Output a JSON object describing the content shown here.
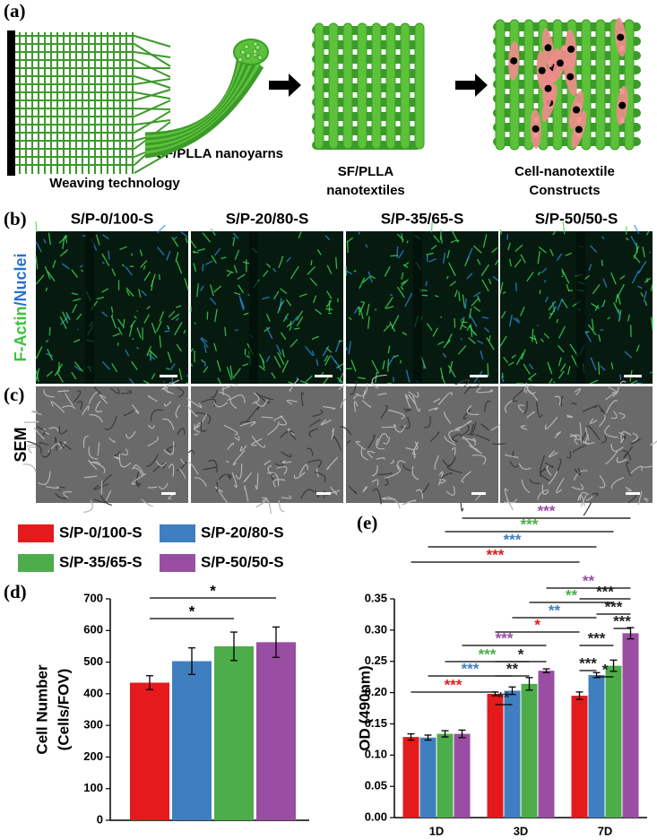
{
  "figure": {
    "panel_labels": [
      "(a)",
      "(b)",
      "(c)",
      "(d)",
      "(e)"
    ],
    "schematic": {
      "nanoyarns": "SF/PLLA nanoyarns",
      "weaving": "Weaving technology",
      "nanotextiles": [
        "SF/PLLA",
        "nanotextiles"
      ],
      "constructs": [
        "Cell-nanotextile",
        "Constructs"
      ]
    },
    "columns": [
      "S/P-0/100-S",
      "S/P-20/80-S",
      "S/P-35/65-S",
      "S/P-50/50-S"
    ],
    "stain": [
      "F-Actin",
      "/Nuclei"
    ],
    "sem": "SEM"
  },
  "chart_data": [
    {
      "type": "bar",
      "ylabel": [
        "Cell Number",
        "(Cells/FOV)"
      ],
      "categories": [
        null,
        null,
        null,
        null
      ],
      "values": [
        435,
        503,
        550,
        563
      ],
      "errors": [
        22,
        42,
        45,
        48
      ],
      "colors": [
        "#e41a1c",
        "#3f7fbf",
        "#4dad4a",
        "#9a4ea3"
      ],
      "ylim": [
        0,
        700
      ],
      "yticks": [
        0,
        100,
        200,
        300,
        400,
        500,
        600,
        700
      ],
      "significance": [
        {
          "from": 0,
          "to": 2,
          "label": "*"
        },
        {
          "from": 0,
          "to": 3,
          "label": "*"
        }
      ]
    },
    {
      "type": "bar",
      "ylabel": "OD (490nm)",
      "categories": [
        "1D",
        "3D",
        "7D"
      ],
      "series": [
        {
          "name": "S/P-0/100-S",
          "color": "#e41a1c",
          "values": [
            0.129,
            0.198,
            0.195
          ],
          "errors": [
            0.005,
            0.003,
            0.006
          ]
        },
        {
          "name": "S/P-20/80-S",
          "color": "#3f7fbf",
          "values": [
            0.128,
            0.203,
            0.228
          ],
          "errors": [
            0.004,
            0.006,
            0.004
          ]
        },
        {
          "name": "S/P-35/65-S",
          "color": "#4dad4a",
          "values": [
            0.134,
            0.214,
            0.243
          ],
          "errors": [
            0.005,
            0.01,
            0.009
          ]
        },
        {
          "name": "S/P-50/50-S",
          "color": "#9a4ea3",
          "values": [
            0.134,
            0.235,
            0.295
          ],
          "errors": [
            0.006,
            0.003,
            0.009
          ]
        }
      ],
      "ylim": [
        0,
        0.35
      ],
      "yticks": [
        {
          "value": 0,
          "label": "0.00"
        },
        {
          "value": 0.05,
          "label": "0.05"
        },
        {
          "value": 0.1,
          "label": "0.10"
        },
        {
          "value": 0.15,
          "label": "0.15"
        },
        {
          "value": 0.2,
          "label": "0.20"
        },
        {
          "value": 0.25,
          "label": "0.25"
        },
        {
          "value": 0.3,
          "label": "0.30"
        },
        {
          "value": 0.35,
          "label": "0.35"
        }
      ],
      "significance": [
        {
          "from": [
            0,
            3
          ],
          "to": [
            2,
            3
          ],
          "label": "***",
          "color": "#9a4ea3"
        },
        {
          "from": [
            0,
            2
          ],
          "to": [
            2,
            2
          ],
          "label": "***",
          "color": "#4dad4a"
        },
        {
          "from": [
            0,
            1
          ],
          "to": [
            2,
            1
          ],
          "label": "***",
          "color": "#3f7fbf"
        },
        {
          "from": [
            0,
            0
          ],
          "to": [
            2,
            0
          ],
          "label": "***",
          "color": "#e41a1c"
        },
        {
          "from": [
            1,
            3
          ],
          "to": [
            2,
            3
          ],
          "label": "**",
          "color": "#9a4ea3"
        },
        {
          "from": [
            1,
            2
          ],
          "to": [
            2,
            2
          ],
          "label": "**",
          "color": "#4dad4a"
        },
        {
          "from": [
            1,
            1
          ],
          "to": [
            2,
            1
          ],
          "label": "**",
          "color": "#3f7fbf"
        },
        {
          "from": [
            1,
            0
          ],
          "to": [
            2,
            0
          ],
          "label": "*",
          "color": "#e41a1c"
        },
        {
          "from": [
            0,
            3
          ],
          "to": [
            1,
            3
          ],
          "label": "***",
          "color": "#9a4ea3"
        },
        {
          "from": [
            0,
            2
          ],
          "to": [
            1,
            2
          ],
          "label": "***",
          "color": "#4dad4a"
        },
        {
          "from": [
            0,
            1
          ],
          "to": [
            1,
            1
          ],
          "label": "***",
          "color": "#3f7fbf"
        },
        {
          "from": [
            0,
            0
          ],
          "to": [
            1,
            0
          ],
          "label": "***",
          "color": "#e41a1c"
        },
        {
          "from": [
            1,
            0
          ],
          "to": [
            1,
            3
          ],
          "label": "*",
          "color": "#222222"
        },
        {
          "from": [
            1,
            0
          ],
          "to": [
            1,
            2
          ],
          "label": "**",
          "color": "#222222"
        },
        {
          "from": [
            1,
            0
          ],
          "to": [
            1,
            1
          ],
          "label": "**",
          "color": "#222222"
        },
        {
          "from": [
            2,
            0
          ],
          "to": [
            2,
            3
          ],
          "label": "***",
          "color": "#222222"
        },
        {
          "from": [
            2,
            1
          ],
          "to": [
            2,
            3
          ],
          "label": "***",
          "color": "#222222"
        },
        {
          "from": [
            2,
            2
          ],
          "to": [
            2,
            3
          ],
          "label": "***",
          "color": "#222222"
        },
        {
          "from": [
            2,
            0
          ],
          "to": [
            2,
            2
          ],
          "label": "***",
          "color": "#222222"
        },
        {
          "from": [
            2,
            1
          ],
          "to": [
            2,
            2
          ],
          "label": "*",
          "color": "#222222"
        },
        {
          "from": [
            2,
            0
          ],
          "to": [
            2,
            1
          ],
          "label": "***",
          "color": "#222222"
        }
      ]
    }
  ]
}
